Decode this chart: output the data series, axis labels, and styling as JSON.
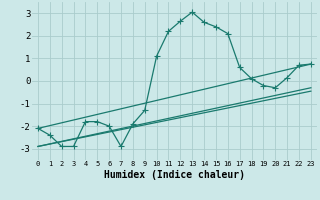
{
  "xlabel": "Humidex (Indice chaleur)",
  "background_color": "#cce8e8",
  "grid_color": "#aacccc",
  "line_color": "#1a7a6e",
  "xlim": [
    -0.5,
    23.5
  ],
  "ylim": [
    -3.5,
    3.5
  ],
  "xtick_labels": [
    "0",
    "1",
    "2",
    "3",
    "4",
    "5",
    "6",
    "7",
    "8",
    "9",
    "10",
    "11",
    "12",
    "13",
    "14",
    "15",
    "16",
    "17",
    "18",
    "19",
    "20",
    "21",
    "22",
    "23"
  ],
  "yticks": [
    -3,
    -2,
    -1,
    0,
    1,
    2,
    3
  ],
  "series1_x": [
    0,
    1,
    2,
    3,
    4,
    5,
    6,
    7,
    8,
    9,
    10,
    11,
    12,
    13,
    14,
    15,
    16,
    17,
    18,
    19,
    20,
    21,
    22,
    23
  ],
  "series1_y": [
    -2.1,
    -2.4,
    -2.9,
    -2.9,
    -1.8,
    -1.8,
    -2.0,
    -2.9,
    -1.9,
    -1.3,
    1.1,
    2.2,
    2.65,
    3.05,
    2.6,
    2.4,
    2.1,
    0.6,
    0.1,
    -0.2,
    -0.3,
    0.15,
    0.7,
    0.75
  ],
  "series2_x": [
    0,
    23
  ],
  "series2_y": [
    -2.1,
    0.75
  ],
  "series3_x": [
    0,
    23
  ],
  "series3_y": [
    -2.9,
    -0.3
  ],
  "series4_x": [
    0,
    23
  ],
  "series4_y": [
    -2.9,
    -0.45
  ],
  "marker": "+",
  "markersize": 4,
  "linewidth": 0.9
}
